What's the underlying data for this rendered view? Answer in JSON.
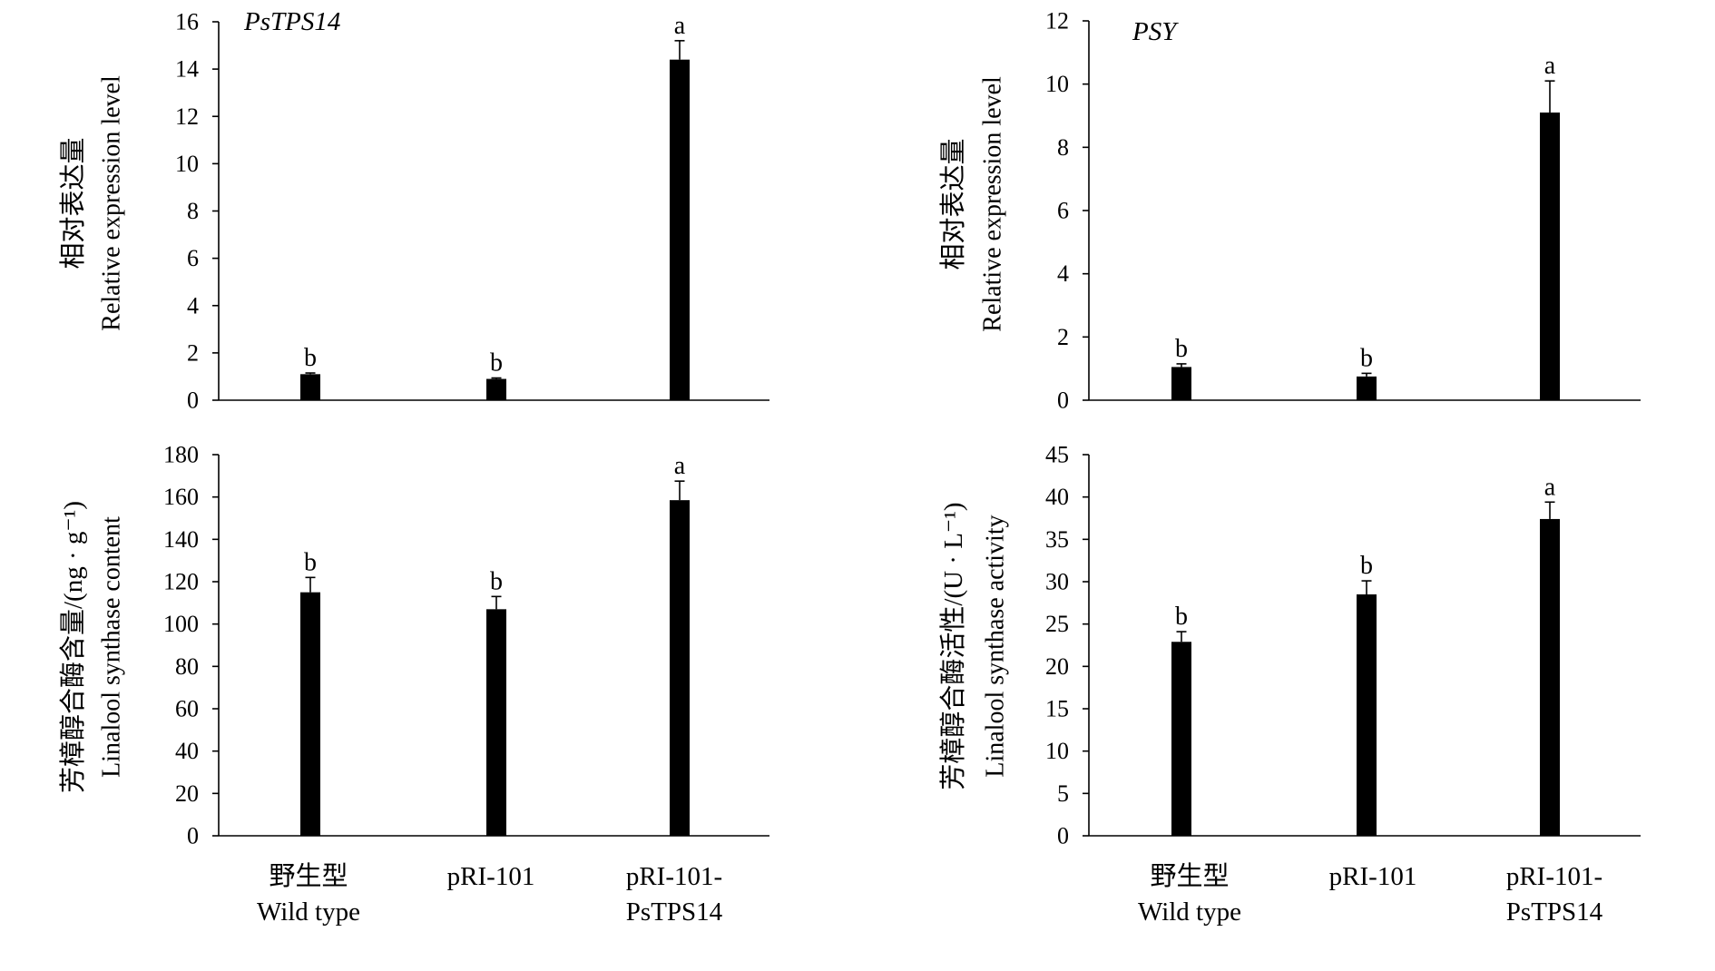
{
  "chart_data": [
    {
      "type": "bar",
      "title": "PsTPS14",
      "ylabel": [
        "相对表达量",
        "Relative expression level"
      ],
      "ylim": [
        0,
        16
      ],
      "yticks": [
        0,
        2,
        4,
        6,
        8,
        10,
        12,
        14,
        16
      ],
      "values": [
        1.1,
        0.9,
        14.4
      ],
      "errors": [
        0.05,
        0.04,
        0.8
      ],
      "letters": [
        "b",
        "b",
        "a"
      ],
      "bar_color": "#000000",
      "grid": false,
      "legend": false
    },
    {
      "type": "bar",
      "title": "PSY",
      "ylabel": [
        "相对表达量",
        "Relative expression level"
      ],
      "ylim": [
        0,
        12
      ],
      "yticks": [
        0,
        2,
        4,
        6,
        8,
        10,
        12
      ],
      "values": [
        1.05,
        0.75,
        9.1
      ],
      "errors": [
        0.1,
        0.1,
        1.0
      ],
      "letters": [
        "b",
        "b",
        "a"
      ],
      "bar_color": "#000000",
      "grid": false,
      "legend": false
    },
    {
      "type": "bar",
      "ylabel": [
        "芳樟醇合酶含量/(ng · g⁻¹)",
        "Linalool synthase content"
      ],
      "ylim": [
        0,
        180
      ],
      "yticks": [
        0,
        20,
        40,
        60,
        80,
        100,
        120,
        140,
        160,
        180
      ],
      "categories": [
        [
          "野生型",
          "Wild type"
        ],
        [
          "pRI-101"
        ],
        [
          "pRI-101-",
          "PsTPS14"
        ]
      ],
      "values": [
        115,
        107,
        158.5
      ],
      "errors": [
        7,
        6,
        9
      ],
      "letters": [
        "b",
        "b",
        "a"
      ],
      "bar_color": "#000000",
      "grid": false,
      "legend": false
    },
    {
      "type": "bar",
      "ylabel": [
        "芳樟醇合酶活性/(U · L⁻¹)",
        "Linalool synthase activity"
      ],
      "ylim": [
        0,
        45
      ],
      "yticks": [
        0,
        5,
        10,
        15,
        20,
        25,
        30,
        35,
        40,
        45
      ],
      "categories": [
        [
          "野生型",
          "Wild type"
        ],
        [
          "pRI-101"
        ],
        [
          "pRI-101-",
          "PsTPS14"
        ]
      ],
      "values": [
        22.9,
        28.5,
        37.4
      ],
      "errors": [
        1.2,
        1.6,
        2.0
      ],
      "letters": [
        "b",
        "b",
        "a"
      ],
      "bar_color": "#000000",
      "grid": false,
      "legend": false
    }
  ]
}
